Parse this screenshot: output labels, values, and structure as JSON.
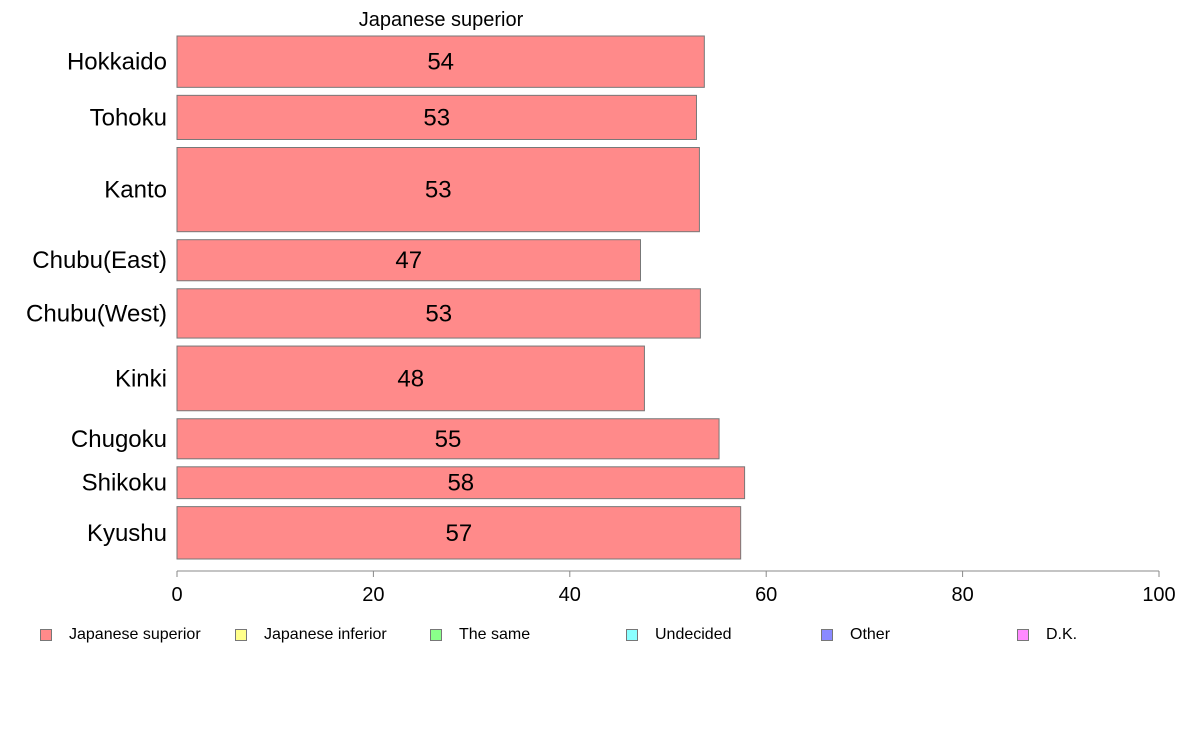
{
  "chart_data": {
    "type": "bar",
    "orientation": "horizontal",
    "title": "Japanese superior",
    "categories": [
      "Hokkaido",
      "Tohoku",
      "Kanto",
      "Chubu(East)",
      "Chubu(West)",
      "Kinki",
      "Chugoku",
      "Shikoku",
      "Kyushu"
    ],
    "series": [
      {
        "name": "Japanese superior",
        "values": [
          53.7,
          52.9,
          53.2,
          47.2,
          53.3,
          47.6,
          55.2,
          57.8,
          57.4
        ],
        "labels": [
          "54",
          "53",
          "53",
          "47",
          "53",
          "48",
          "55",
          "58",
          "57"
        ],
        "color": "#ff8a8a"
      }
    ],
    "xlim": [
      0,
      100
    ],
    "xticks": [
      "0",
      "20",
      "40",
      "60",
      "80",
      "100"
    ],
    "xlabel": "",
    "ylabel": "",
    "grid": false,
    "legend_position": "bottom",
    "bar_widths_relative": [
      1.0,
      0.86,
      1.64,
      0.8,
      0.96,
      1.26,
      0.78,
      0.62,
      1.02
    ]
  },
  "legend": {
    "items": [
      {
        "label": "Japanese superior",
        "color": "#ff8a8a"
      },
      {
        "label": "Japanese inferior",
        "color": "#ffff8a"
      },
      {
        "label": "The same",
        "color": "#8aff8a"
      },
      {
        "label": "Undecided",
        "color": "#8affff"
      },
      {
        "label": "Other",
        "color": "#8a8aff"
      },
      {
        "label": "D.K.",
        "color": "#ff8aff"
      }
    ]
  }
}
